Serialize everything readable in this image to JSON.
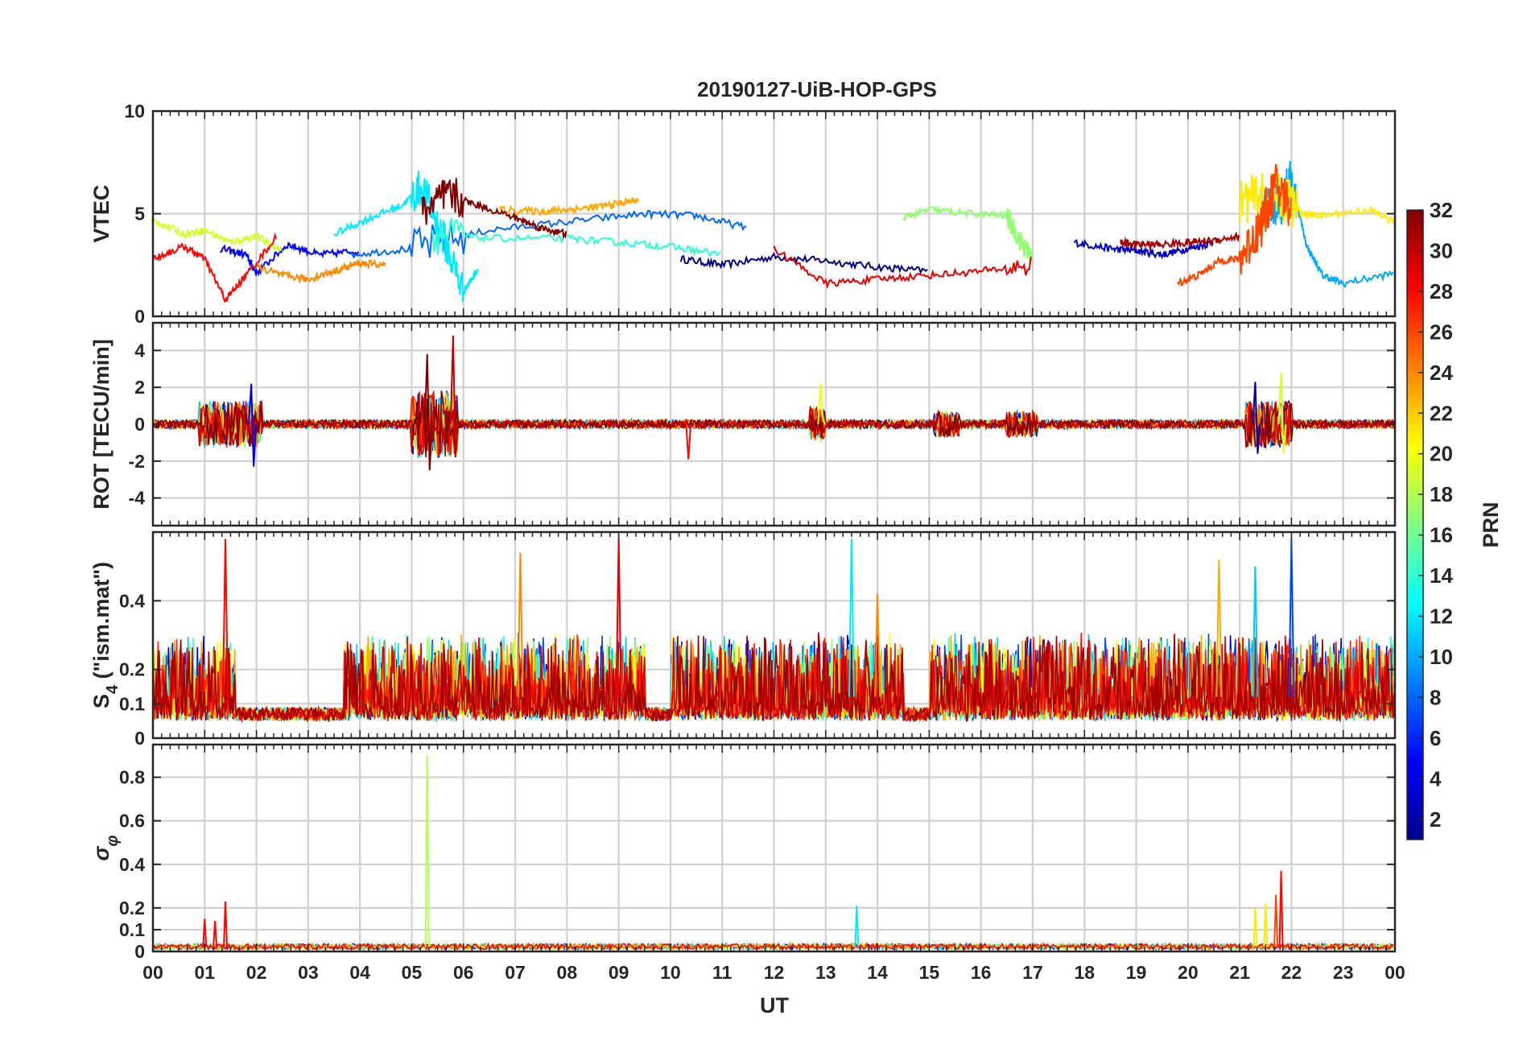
{
  "chart_data": {
    "type": "line",
    "title": "20190127-UiB-HOP-GPS",
    "xlabel": "UT",
    "x_range": [
      0,
      24
    ],
    "x_tick_labels": [
      "00",
      "01",
      "02",
      "03",
      "04",
      "05",
      "06",
      "07",
      "08",
      "09",
      "10",
      "11",
      "12",
      "13",
      "14",
      "15",
      "16",
      "17",
      "18",
      "19",
      "20",
      "21",
      "22",
      "23",
      "00"
    ],
    "grid": true,
    "colorbar": {
      "label": "PRN",
      "range": [
        1,
        32
      ],
      "tick_values": [
        2,
        4,
        6,
        8,
        10,
        12,
        14,
        16,
        18,
        20,
        22,
        24,
        26,
        28,
        30,
        32
      ],
      "tick_labels": [
        "2",
        "4",
        "6",
        "8",
        "10",
        "12",
        "14",
        "16",
        "18",
        "20",
        "22",
        "24",
        "26",
        "28",
        "30",
        "32"
      ],
      "colormap": "jet",
      "position": "right"
    },
    "panels": [
      {
        "ylabel": "VTEC",
        "ylim": [
          0,
          10
        ],
        "y_ticks": [
          0,
          5,
          10
        ],
        "y_tick_labels": [
          "0",
          "5",
          "10"
        ],
        "baseline": 3.0,
        "activity_windows": [
          [
            5.0,
            6.0,
            3.2
          ],
          [
            21.0,
            22.1,
            4.0
          ],
          [
            16.5,
            17.2,
            1.5
          ]
        ],
        "series": [
          {
            "prn": 1,
            "x": [
              10.2,
              11.0,
              12.0,
              13.0,
              14.0,
              15.0
            ],
            "y": [
              2.8,
              2.5,
              2.9,
              2.7,
              2.4,
              2.2
            ]
          },
          {
            "prn": 3,
            "x": [
              17.8,
              18.5,
              19.0,
              19.5,
              20.0,
              20.5
            ],
            "y": [
              3.6,
              3.3,
              3.2,
              3.0,
              3.3,
              3.6
            ]
          },
          {
            "prn": 5,
            "x": [
              1.3,
              1.8,
              2.0,
              2.6,
              3.2,
              4.0
            ],
            "y": [
              3.3,
              3.0,
              2.1,
              3.5,
              3.0,
              3.2
            ]
          },
          {
            "prn": 8,
            "x": [
              3.8,
              5.0,
              6.5,
              8.0,
              9.5,
              10.5,
              11.5
            ],
            "y": [
              3.0,
              3.3,
              4.2,
              4.6,
              5.0,
              4.9,
              4.3
            ]
          },
          {
            "prn": 10,
            "x": [
              21.4,
              21.8,
              22.0,
              22.3,
              22.6,
              23.0,
              24.0
            ],
            "y": [
              5.1,
              5.6,
              6.6,
              3.4,
              2.0,
              1.6,
              2.1
            ]
          },
          {
            "prn": 12,
            "x": [
              3.5,
              4.2,
              4.8,
              5.2,
              5.6,
              6.0,
              6.3
            ],
            "y": [
              4.0,
              4.8,
              5.4,
              6.3,
              3.9,
              1.2,
              2.4
            ]
          },
          {
            "prn": 14,
            "x": [
              5.4,
              6.5,
              8.0,
              9.0,
              10.0,
              11.0
            ],
            "y": [
              4.0,
              3.8,
              3.8,
              3.6,
              3.4,
              3.0
            ]
          },
          {
            "prn": 17,
            "x": [
              14.5,
              15.0,
              15.8,
              16.5,
              16.8,
              17.0
            ],
            "y": [
              4.8,
              5.2,
              5.0,
              4.9,
              3.5,
              2.8
            ]
          },
          {
            "prn": 19,
            "x": [
              0.0,
              0.6,
              1.0,
              1.5,
              2.0,
              2.5
            ],
            "y": [
              4.7,
              4.0,
              4.2,
              3.6,
              3.9,
              3.2
            ]
          },
          {
            "prn": 21,
            "x": [
              21.0,
              21.5,
              21.9,
              22.2,
              22.6,
              23.5,
              24.0
            ],
            "y": [
              5.6,
              5.9,
              5.7,
              5.0,
              4.9,
              5.2,
              4.6
            ]
          },
          {
            "prn": 23,
            "x": [
              6.7,
              7.5,
              8.0,
              8.5,
              9.0,
              9.4
            ],
            "y": [
              5.2,
              5.1,
              5.2,
              5.3,
              5.5,
              5.7
            ]
          },
          {
            "prn": 24,
            "x": [
              2.0,
              2.5,
              3.0,
              3.5,
              4.0,
              4.5
            ],
            "y": [
              2.4,
              2.0,
              1.8,
              2.2,
              2.6,
              2.5
            ]
          },
          {
            "prn": 26,
            "x": [
              19.8,
              20.2,
              20.6,
              21.0,
              21.4,
              21.7,
              22.0
            ],
            "y": [
              1.6,
              2.0,
              2.7,
              2.8,
              4.4,
              6.4,
              5.3
            ]
          },
          {
            "prn": 28,
            "x": [
              0.0,
              0.6,
              1.0,
              1.4,
              1.8,
              2.4
            ],
            "y": [
              2.8,
              3.4,
              2.8,
              0.8,
              2.0,
              3.9
            ]
          },
          {
            "prn": 29,
            "x": [
              12.0,
              13.0,
              14.0,
              15.0,
              16.0,
              17.0
            ],
            "y": [
              3.3,
              1.6,
              1.8,
              2.0,
              2.2,
              2.5
            ]
          },
          {
            "prn": 31,
            "x": [
              18.7,
              19.0,
              19.5,
              20.0,
              20.5,
              21.0
            ],
            "y": [
              3.6,
              3.5,
              3.5,
              3.6,
              3.7,
              3.9
            ]
          },
          {
            "prn": 32,
            "x": [
              5.2,
              5.7,
              6.3,
              7.0,
              7.5,
              8.0
            ],
            "y": [
              5.1,
              5.9,
              5.4,
              4.8,
              4.3,
              4.0
            ]
          }
        ]
      },
      {
        "ylabel": "ROT [TECU/min]",
        "ylim": [
          -5.5,
          5.5
        ],
        "y_ticks": [
          -4,
          -2,
          0,
          2,
          4
        ],
        "y_tick_labels": [
          "-4",
          "-2",
          "0",
          "2",
          "4"
        ],
        "baseline": 0,
        "activity_windows": [
          [
            0.9,
            2.1,
            1.3
          ],
          [
            5.0,
            5.9,
            2.0
          ],
          [
            21.1,
            22.0,
            1.3
          ],
          [
            15.1,
            15.6,
            0.6
          ],
          [
            16.5,
            17.1,
            0.6
          ],
          [
            12.7,
            13.0,
            0.9
          ]
        ],
        "spikes": [
          [
            5.3,
            3.8,
            -2.5
          ],
          [
            5.8,
            4.8,
            -1.8
          ],
          [
            1.9,
            2.2,
            -2.3
          ],
          [
            12.9,
            2.2,
            0.2
          ],
          [
            10.3,
            0.2,
            -1.9
          ],
          [
            21.3,
            2.3,
            -1.6
          ],
          [
            21.8,
            2.8,
            -1.6
          ]
        ]
      },
      {
        "ylabel": "S_4 (\"ism.mat\")",
        "ylim": [
          0,
          0.6
        ],
        "y_ticks": [
          0,
          0.1,
          0.2,
          0.4
        ],
        "y_tick_labels": [
          "0",
          "0.1",
          "0.2",
          "0.4"
        ],
        "baseline": 0.1,
        "activity_windows": [
          [
            0.0,
            1.6,
            0.2
          ],
          [
            3.7,
            9.5,
            0.2
          ],
          [
            10.0,
            14.5,
            0.2
          ],
          [
            15.0,
            24.0,
            0.2
          ]
        ],
        "spikes": [
          [
            1.4,
            0.58
          ],
          [
            9.0,
            0.58
          ],
          [
            13.5,
            0.58
          ],
          [
            22.0,
            0.58
          ],
          [
            7.1,
            0.54
          ],
          [
            20.6,
            0.52
          ],
          [
            21.3,
            0.5
          ],
          [
            14.0,
            0.42
          ]
        ]
      },
      {
        "ylabel": "σ_φ",
        "ylim": [
          0,
          0.95
        ],
        "y_ticks": [
          0,
          0.1,
          0.2,
          0.4,
          0.6,
          0.8
        ],
        "y_tick_labels": [
          "0",
          "0.1",
          "0.2",
          "0.4",
          "0.6",
          "0.8"
        ],
        "baseline": 0.02,
        "spikes": [
          [
            5.3,
            0.9
          ],
          [
            1.4,
            0.23
          ],
          [
            1.0,
            0.15
          ],
          [
            1.2,
            0.14
          ],
          [
            13.6,
            0.21
          ],
          [
            21.8,
            0.37
          ],
          [
            21.5,
            0.22
          ],
          [
            21.7,
            0.26
          ],
          [
            21.3,
            0.2
          ]
        ]
      }
    ]
  }
}
